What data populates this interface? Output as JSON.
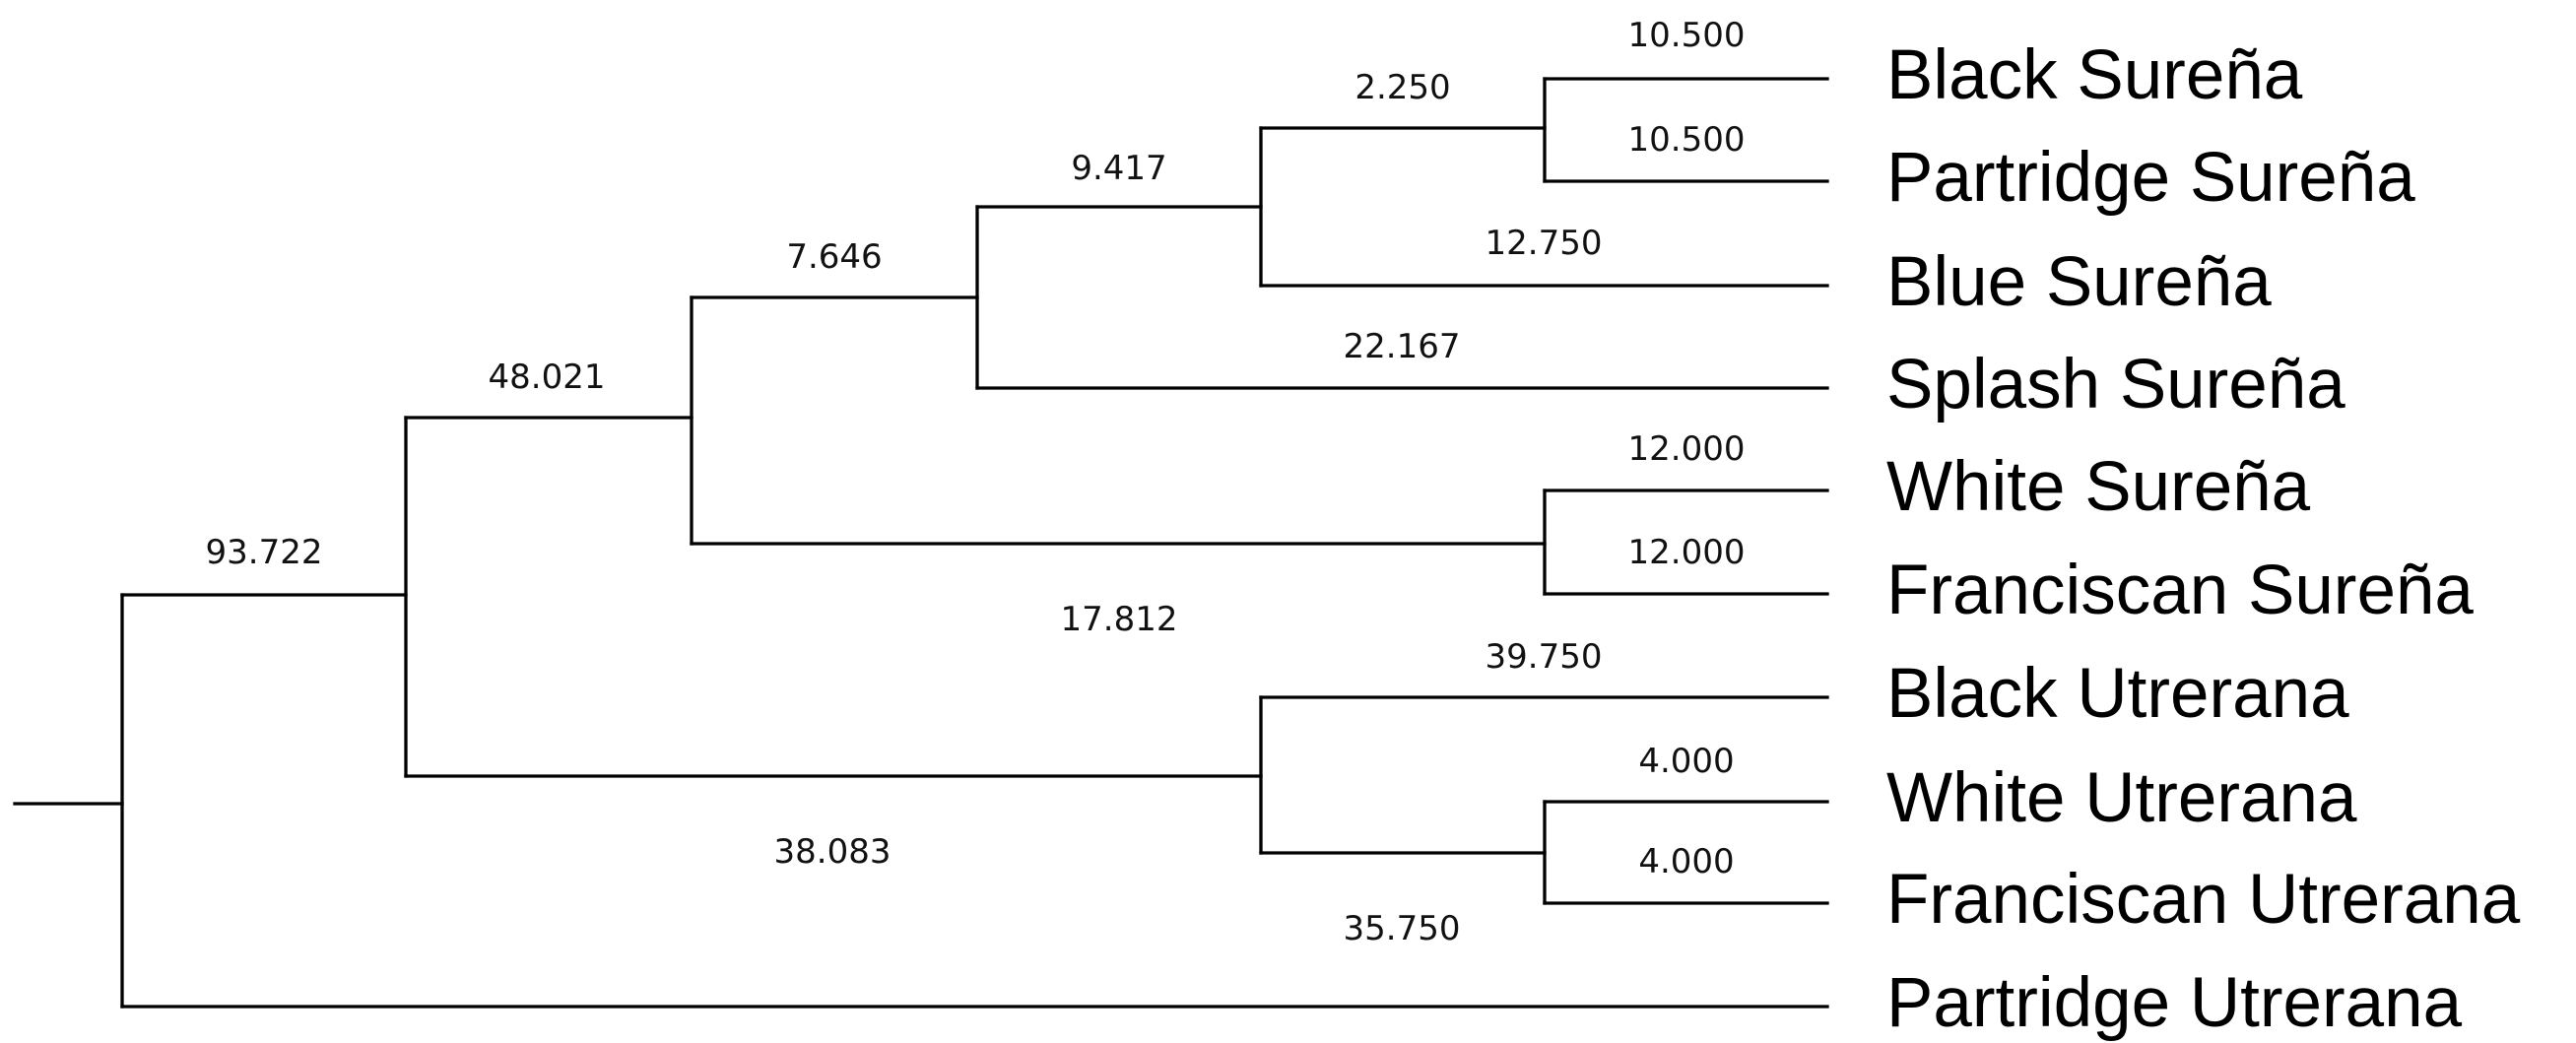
{
  "tree": {
    "leaves": [
      {
        "name": "Black Sureña"
      },
      {
        "name": "Partridge Sureña"
      },
      {
        "name": "Blue Sureña"
      },
      {
        "name": "Splash Sureña"
      },
      {
        "name": "White Sureña"
      },
      {
        "name": "Franciscan Sureña"
      },
      {
        "name": "Black Utrerana"
      },
      {
        "name": "White Utrerana"
      },
      {
        "name": "Franciscan Utrerana"
      },
      {
        "name": "Partridge Utrerana"
      }
    ],
    "branches": {
      "black_surena": "10.500",
      "partridge_surena": "10.500",
      "black_partridge_surena_clade": "2.250",
      "blue_surena": "12.750",
      "black_partridge_blue_clade": "9.417",
      "splash_surena": "22.167",
      "black_to_splash_clade": "7.646",
      "white_surena": "12.000",
      "franciscan_surena": "12.000",
      "white_franciscan_surena_clade": "17.812",
      "surena_clade": "48.021",
      "black_utrerana": "39.750",
      "white_utrerana": "4.000",
      "franciscan_utrerana": "4.000",
      "white_franciscan_utrerana_clade": "35.750",
      "utrerana_clade": "38.083",
      "ingroup_clade": "93.722"
    }
  }
}
